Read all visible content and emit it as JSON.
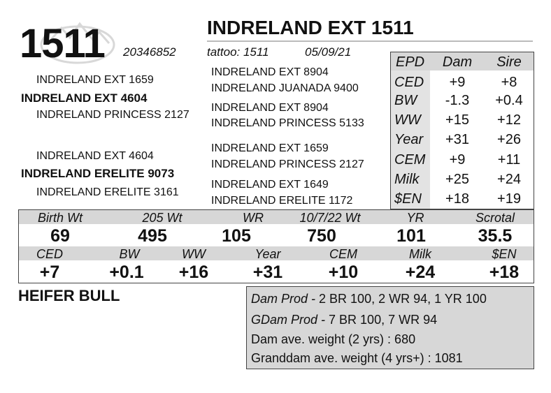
{
  "lot_number": "1511",
  "animal_name": "INDRELAND EXT 1511",
  "registration": "20346852",
  "tattoo": "tattoo: 1511",
  "birth_date": "05/09/21",
  "pedigree": {
    "sire_side": {
      "sire_sire": "INDRELAND EXT 1659",
      "sire": "INDRELAND EXT 4604",
      "sire_dam": "INDRELAND PRINCESS 2127",
      "sss": "INDRELAND EXT 8904",
      "ssd": "INDRELAND JUANADA 9400",
      "sds": "INDRELAND EXT 8904",
      "sdd": "INDRELAND PRINCESS 5133"
    },
    "dam_side": {
      "dam_sire": "INDRELAND EXT 4604",
      "dam": "INDRELAND ERELITE 9073",
      "dam_dam": "INDRELAND ERELITE 3161",
      "dss": "INDRELAND EXT 1659",
      "dsd": "INDRELAND PRINCESS 2127",
      "dds": "INDRELAND EXT 1649",
      "ddd": "INDRELAND ERELITE 1172"
    }
  },
  "epd_table": {
    "headers": [
      "EPD",
      "Dam",
      "Sire"
    ],
    "rows": [
      {
        "trait": "CED",
        "dam": "+9",
        "sire": "+8"
      },
      {
        "trait": "BW",
        "dam": "-1.3",
        "sire": "+0.4"
      },
      {
        "trait": "WW",
        "dam": "+15",
        "sire": "+12"
      },
      {
        "trait": "Year",
        "dam": "+31",
        "sire": "+26"
      },
      {
        "trait": "CEM",
        "dam": "+9",
        "sire": "+11"
      },
      {
        "trait": "Milk",
        "dam": "+25",
        "sire": "+24"
      },
      {
        "trait": "$EN",
        "dam": "+18",
        "sire": "+19"
      }
    ]
  },
  "performance": {
    "headers": [
      "Birth Wt",
      "205 Wt",
      "WR",
      "10/7/22 Wt",
      "YR",
      "Scrotal"
    ],
    "values": [
      "69",
      "495",
      "105",
      "750",
      "101",
      "35.5"
    ]
  },
  "calf_epds": {
    "headers": [
      "CED",
      "BW",
      "WW",
      "Year",
      "CEM",
      "Milk",
      "$EN"
    ],
    "values": [
      "+7",
      "+0.1",
      "+16",
      "+31",
      "+10",
      "+24",
      "+18"
    ]
  },
  "classification": "HEIFER BULL",
  "production": {
    "dam_prod_label": "Dam Prod -",
    "dam_prod_value": " 2 BR 100, 2 WR 94, 1 YR 100",
    "gdam_prod_label": "GDam Prod -",
    "gdam_prod_value": " 7 BR 100, 7 WR 94",
    "dam_avg_weight": "Dam ave. weight (2 yrs) : 680",
    "granddam_avg_weight": "Granddam ave. weight (4 yrs+) : 1081"
  }
}
